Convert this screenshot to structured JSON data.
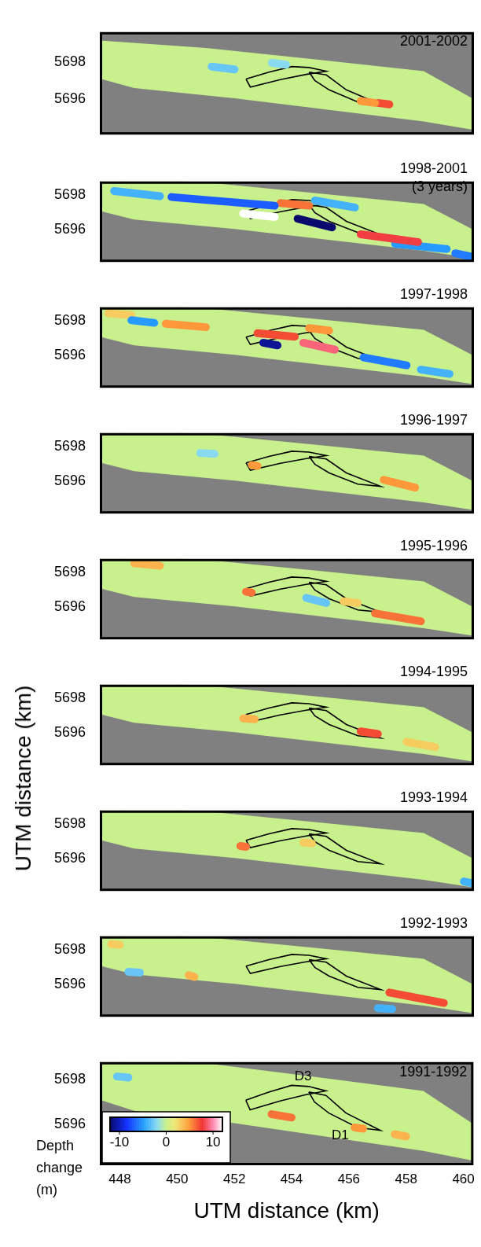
{
  "chart_data": {
    "type": "heatmap",
    "x_label": "UTM distance (km)",
    "y_label": "UTM distance (km)",
    "xlim": [
      447.3,
      460.35
    ],
    "xticks": [
      448,
      450,
      452,
      454,
      456,
      458,
      460
    ],
    "yticks": [
      5696,
      5698
    ],
    "grid": true,
    "swath": {
      "x": [
        447.3,
        451.0,
        455.0,
        458.6,
        460.35,
        460.35,
        458.6,
        452.0,
        448.5,
        447.3
      ],
      "y": [
        5699.15,
        5698.75,
        5698.1,
        5697.5,
        5696.0,
        5694.35,
        5694.8,
        5696.05,
        5696.6,
        5697.1
      ]
    },
    "outlines": [
      {
        "x": [
          452.4,
          453.2,
          454.0,
          454.6,
          455.2,
          454.5,
          453.6,
          452.55
        ],
        "y": [
          5697.08,
          5697.45,
          5697.75,
          5697.7,
          5697.5,
          5697.33,
          5697.05,
          5696.65
        ]
      },
      {
        "x": [
          454.6,
          455.2,
          455.9,
          457.1,
          456.3,
          455.3,
          454.8
        ],
        "y": [
          5697.45,
          5697.3,
          5696.5,
          5695.72,
          5695.85,
          5696.5,
          5697.0
        ]
      }
    ],
    "colorbar": {
      "label": "Depth change (m)",
      "range": [
        -12,
        12
      ],
      "ticks": [
        -10,
        0,
        10
      ]
    },
    "panels": [
      {
        "title": "2001-2002",
        "ylim": [
          5694.1,
          5699.6
        ],
        "tick_labels": "y",
        "cells": [
          {
            "x": [
              456.4,
              456.9
            ],
            "y": [
              5695.9,
              5695.8
            ],
            "value": 5
          },
          {
            "x": [
              457.0,
              457.4
            ],
            "y": [
              5695.8,
              5695.72
            ],
            "value": 7
          },
          {
            "x": [
              451.2,
              452.0
            ],
            "y": [
              5697.75,
              5697.6
            ],
            "value": -3
          },
          {
            "x": [
              453.3,
              453.8
            ],
            "y": [
              5697.95,
              5697.85
            ],
            "value": -2
          }
        ]
      },
      {
        "title": "1998-2001 (3 years)",
        "ylim": [
          5694.15,
          5698.8
        ],
        "tick_labels": "y",
        "cells": [
          {
            "x": [
              452.3,
              453.4
            ],
            "y": [
              5696.95,
              5696.75
            ],
            "value": 12
          },
          {
            "x": [
              454.2,
              455.4
            ],
            "y": [
              5696.65,
              5696.15
            ],
            "value": -12
          },
          {
            "x": [
              449.8,
              453.4
            ],
            "y": [
              5697.9,
              5697.4
            ],
            "value": -7
          },
          {
            "x": [
              447.8,
              449.4
            ],
            "y": [
              5698.25,
              5697.95
            ],
            "value": -4
          },
          {
            "x": [
              456.4,
              458.4
            ],
            "y": [
              5695.75,
              5695.3
            ],
            "value": 8
          },
          {
            "x": [
              457.6,
              459.4
            ],
            "y": [
              5695.2,
              5694.9
            ],
            "value": -5
          },
          {
            "x": [
              459.7,
              460.3
            ],
            "y": [
              5694.65,
              5694.45
            ],
            "value": -6
          },
          {
            "x": [
              453.6,
              454.6
            ],
            "y": [
              5697.55,
              5697.4
            ],
            "value": 6
          },
          {
            "x": [
              454.8,
              456.2
            ],
            "y": [
              5697.7,
              5697.3
            ],
            "value": -4
          }
        ]
      },
      {
        "title": "1997-1998",
        "ylim": [
          5694.15,
          5698.8
        ],
        "tick_labels": "y",
        "cells": [
          {
            "x": [
              453.0,
              453.5
            ],
            "y": [
              5696.75,
              5696.6
            ],
            "value": -11
          },
          {
            "x": [
              452.8,
              454.1
            ],
            "y": [
              5697.3,
              5697.1
            ],
            "value": 7
          },
          {
            "x": [
              454.4,
              455.5
            ],
            "y": [
              5696.75,
              5696.35
            ],
            "value": 9
          },
          {
            "x": [
              449.6,
              451.0
            ],
            "y": [
              5697.85,
              5697.65
            ],
            "value": 5
          },
          {
            "x": [
              448.4,
              449.2
            ],
            "y": [
              5698.05,
              5697.9
            ],
            "value": -5
          },
          {
            "x": [
              456.5,
              458.0
            ],
            "y": [
              5695.9,
              5695.45
            ],
            "value": -6
          },
          {
            "x": [
              458.5,
              459.5
            ],
            "y": [
              5695.2,
              5694.95
            ],
            "value": -4
          },
          {
            "x": [
              454.6,
              455.3
            ],
            "y": [
              5697.6,
              5697.45
            ],
            "value": 5
          },
          {
            "x": [
              447.6,
              448.4
            ],
            "y": [
              5698.45,
              5698.35
            ],
            "value": 3
          }
        ]
      },
      {
        "title": "1996-1997",
        "ylim": [
          5694.15,
          5698.8
        ],
        "tick_labels": "y",
        "cells": [
          {
            "x": [
              452.6,
              452.8
            ],
            "y": [
              5696.95,
              5696.9
            ],
            "value": 5
          },
          {
            "x": [
              457.2,
              458.3
            ],
            "y": [
              5696.1,
              5695.65
            ],
            "value": 5
          },
          {
            "x": [
              450.8,
              451.3
            ],
            "y": [
              5697.65,
              5697.6
            ],
            "value": -2
          }
        ]
      },
      {
        "title": "1995-1996",
        "ylim": [
          5694.15,
          5698.8
        ],
        "tick_labels": "y",
        "cells": [
          {
            "x": [
              452.4,
              452.6
            ],
            "y": [
              5696.9,
              5696.85
            ],
            "value": 6
          },
          {
            "x": [
              454.5,
              455.2
            ],
            "y": [
              5696.55,
              5696.25
            ],
            "value": -3
          },
          {
            "x": [
              456.9,
              458.5
            ],
            "y": [
              5695.65,
              5695.2
            ],
            "value": 6
          },
          {
            "x": [
              455.8,
              456.3
            ],
            "y": [
              5696.35,
              5696.25
            ],
            "value": 3
          },
          {
            "x": [
              448.5,
              449.4
            ],
            "y": [
              5698.55,
              5698.4
            ],
            "value": 4
          }
        ]
      },
      {
        "title": "1994-1995",
        "ylim": [
          5694.15,
          5698.8
        ],
        "tick_labels": "y",
        "cells": [
          {
            "x": [
              456.4,
              457.0
            ],
            "y": [
              5696.1,
              5695.95
            ],
            "value": 7
          },
          {
            "x": [
              452.3,
              452.7
            ],
            "y": [
              5696.85,
              5696.8
            ],
            "value": 4
          },
          {
            "x": [
              458.0,
              459.0
            ],
            "y": [
              5695.5,
              5695.2
            ],
            "value": 3
          }
        ]
      },
      {
        "title": "1993-1994",
        "ylim": [
          5694.15,
          5698.8
        ],
        "tick_labels": "y",
        "cells": [
          {
            "x": [
              452.2,
              452.4
            ],
            "y": [
              5696.75,
              5696.7
            ],
            "value": 6
          },
          {
            "x": [
              454.4,
              454.7
            ],
            "y": [
              5696.95,
              5696.9
            ],
            "value": 3
          },
          {
            "x": [
              460.0,
              460.3
            ],
            "y": [
              5694.7,
              5694.6
            ],
            "value": -4
          }
        ]
      },
      {
        "title": "1992-1993",
        "ylim": [
          5694.15,
          5698.8
        ],
        "tick_labels": "y",
        "cells": [
          {
            "x": [
              457.4,
              459.3
            ],
            "y": [
              5695.55,
              5694.95
            ],
            "value": 7
          },
          {
            "x": [
              450.4,
              450.6
            ],
            "y": [
              5696.55,
              5696.45
            ],
            "value": 4
          },
          {
            "x": [
              448.3,
              448.7
            ],
            "y": [
              5696.75,
              5696.7
            ],
            "value": -3
          },
          {
            "x": [
              457.0,
              457.5
            ],
            "y": [
              5694.65,
              5694.6
            ],
            "value": -4
          },
          {
            "x": [
              447.7,
              448.0
            ],
            "y": [
              5698.35,
              5698.3
            ],
            "value": 3
          }
        ]
      },
      {
        "title": "1991-1992",
        "ylim": [
          5694.15,
          5698.8
        ],
        "cells": [
          {
            "x": [
              453.3,
              454.0
            ],
            "y": [
              5696.45,
              5696.3
            ],
            "value": 6
          },
          {
            "x": [
              456.2,
              456.5
            ],
            "y": [
              5695.85,
              5695.8
            ],
            "value": 5
          },
          {
            "x": [
              457.6,
              458.0
            ],
            "y": [
              5695.55,
              5695.45
            ],
            "value": 4
          },
          {
            "x": [
              447.9,
              448.3
            ],
            "y": [
              5698.15,
              5698.1
            ],
            "value": -3
          }
        ],
        "annotations": [
          {
            "text": "D3",
            "x": 454.4,
            "y": 5698.15
          },
          {
            "text": "D1",
            "x": 455.7,
            "y": 5695.5
          }
        ]
      }
    ]
  }
}
